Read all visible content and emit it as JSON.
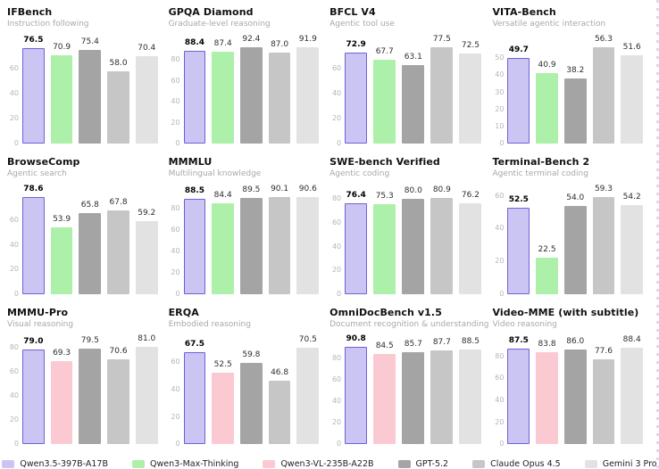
{
  "page": {
    "background": "#ffffff"
  },
  "models": {
    "qwen35": {
      "label": "Qwen3.5-397B-A17B",
      "fill": "#cac5f2",
      "border": "#6e62d8"
    },
    "qwen3mt": {
      "label": "Qwen3-Max-Thinking",
      "fill": "#adf0a9"
    },
    "qwen3vl": {
      "label": "Qwen3-VL-235B-A22B",
      "fill": "#fbc9d2"
    },
    "gpt52": {
      "label": "GPT-5.2",
      "fill": "#a4a4a4"
    },
    "claude": {
      "label": "Claude Opus 4.5",
      "fill": "#c6c6c6"
    },
    "gemini": {
      "label": "Gemini 3 Pro",
      "fill": "#e2e2e2"
    }
  },
  "legend_order": [
    "qwen35",
    "qwen3mt",
    "qwen3vl",
    "gpt52",
    "claude",
    "gemini"
  ],
  "chart_data": [
    {
      "type": "bar",
      "title": "IFBench",
      "subtitle": "Instruction following",
      "ylim": [
        0,
        80
      ],
      "yticks": [
        0,
        20,
        40,
        60
      ],
      "grid": false,
      "categories": [
        "qwen35",
        "qwen3mt",
        "gpt52",
        "claude",
        "gemini"
      ],
      "values": [
        76.5,
        70.9,
        75.4,
        58.0,
        70.4
      ],
      "highlight_index": 0
    },
    {
      "type": "bar",
      "title": "GPQA Diamond",
      "subtitle": "Graduate-level reasoning",
      "ylim": [
        0,
        95
      ],
      "yticks": [
        0,
        20,
        40,
        60,
        80
      ],
      "grid": false,
      "categories": [
        "qwen35",
        "qwen3mt",
        "gpt52",
        "claude",
        "gemini"
      ],
      "values": [
        88.4,
        87.4,
        92.4,
        87.0,
        91.9
      ],
      "highlight_index": 0
    },
    {
      "type": "bar",
      "title": "BFCL V4",
      "subtitle": "Agentic tool use",
      "ylim": [
        0,
        80
      ],
      "yticks": [
        0,
        20,
        40,
        60
      ],
      "grid": false,
      "categories": [
        "qwen35",
        "qwen3mt",
        "gpt52",
        "claude",
        "gemini"
      ],
      "values": [
        72.9,
        67.7,
        63.1,
        77.5,
        72.5
      ],
      "highlight_index": 0
    },
    {
      "type": "bar",
      "title": "VITA-Bench",
      "subtitle": "Versatile agentic interaction",
      "ylim": [
        0,
        58
      ],
      "yticks": [
        0,
        10,
        20,
        30,
        40,
        50
      ],
      "grid": false,
      "categories": [
        "qwen35",
        "qwen3mt",
        "gpt52",
        "claude",
        "gemini"
      ],
      "values": [
        49.7,
        40.9,
        38.2,
        56.3,
        51.6
      ],
      "highlight_index": 0
    },
    {
      "type": "bar",
      "title": "BrowseComp",
      "subtitle": "Agentic search",
      "ylim": [
        0,
        81
      ],
      "yticks": [
        0,
        20,
        40,
        60
      ],
      "grid": false,
      "categories": [
        "qwen35",
        "qwen3mt",
        "gpt52",
        "claude",
        "gemini"
      ],
      "values": [
        78.6,
        53.9,
        65.8,
        67.8,
        59.2
      ],
      "highlight_index": 0
    },
    {
      "type": "bar",
      "title": "MMMLU",
      "subtitle": "Multilingual knowledge",
      "ylim": [
        0,
        93
      ],
      "yticks": [
        0,
        20,
        40,
        60,
        80
      ],
      "grid": false,
      "categories": [
        "qwen35",
        "qwen3mt",
        "gpt52",
        "claude",
        "gemini"
      ],
      "values": [
        88.5,
        84.4,
        89.5,
        90.1,
        90.6
      ],
      "highlight_index": 0
    },
    {
      "type": "bar",
      "title": "SWE-bench Verified",
      "subtitle": "Agentic coding",
      "ylim": [
        0,
        84
      ],
      "yticks": [
        0,
        20,
        40,
        60,
        80
      ],
      "grid": false,
      "categories": [
        "qwen35",
        "qwen3mt",
        "gpt52",
        "claude",
        "gemini"
      ],
      "values": [
        76.4,
        75.3,
        80.0,
        80.9,
        76.2
      ],
      "highlight_index": 0
    },
    {
      "type": "bar",
      "title": "Terminal-Bench 2",
      "subtitle": "Agentic terminal coding",
      "ylim": [
        0,
        61
      ],
      "yticks": [
        0,
        20,
        40,
        60
      ],
      "grid": false,
      "categories": [
        "qwen35",
        "qwen3mt",
        "gpt52",
        "claude",
        "gemini"
      ],
      "values": [
        52.5,
        22.5,
        54.0,
        59.3,
        54.2
      ],
      "highlight_index": 0
    },
    {
      "type": "bar",
      "title": "MMMU-Pro",
      "subtitle": "Visual reasoning",
      "ylim": [
        0,
        83
      ],
      "yticks": [
        0,
        20,
        40,
        60,
        80
      ],
      "grid": false,
      "categories": [
        "qwen35",
        "qwen3vl",
        "gpt52",
        "claude",
        "gemini"
      ],
      "values": [
        79.0,
        69.3,
        79.5,
        70.6,
        81.0
      ],
      "highlight_index": 0
    },
    {
      "type": "bar",
      "title": "ERQA",
      "subtitle": "Embodied reasoning",
      "ylim": [
        0,
        73
      ],
      "yticks": [
        0,
        20,
        40,
        60
      ],
      "grid": false,
      "categories": [
        "qwen35",
        "qwen3vl",
        "gpt52",
        "claude",
        "gemini"
      ],
      "values": [
        67.5,
        52.5,
        59.8,
        46.8,
        70.5
      ],
      "highlight_index": 0
    },
    {
      "type": "bar",
      "title": "OmniDocBench v1.5",
      "subtitle": "Document recognition & understanding",
      "ylim": [
        0,
        93
      ],
      "yticks": [
        0,
        20,
        40,
        60,
        80
      ],
      "grid": false,
      "categories": [
        "qwen35",
        "qwen3vl",
        "gpt52",
        "claude",
        "gemini"
      ],
      "values": [
        90.8,
        84.5,
        85.7,
        87.7,
        88.5
      ],
      "highlight_index": 0
    },
    {
      "type": "bar",
      "title": "Video-MME (with subtitle)",
      "subtitle": "Video reasoning",
      "ylim": [
        0,
        91
      ],
      "yticks": [
        0,
        20,
        40,
        60,
        80
      ],
      "grid": false,
      "categories": [
        "qwen35",
        "qwen3vl",
        "gpt52",
        "claude",
        "gemini"
      ],
      "values": [
        87.5,
        83.8,
        86.0,
        77.6,
        88.4
      ],
      "highlight_index": 0
    }
  ]
}
